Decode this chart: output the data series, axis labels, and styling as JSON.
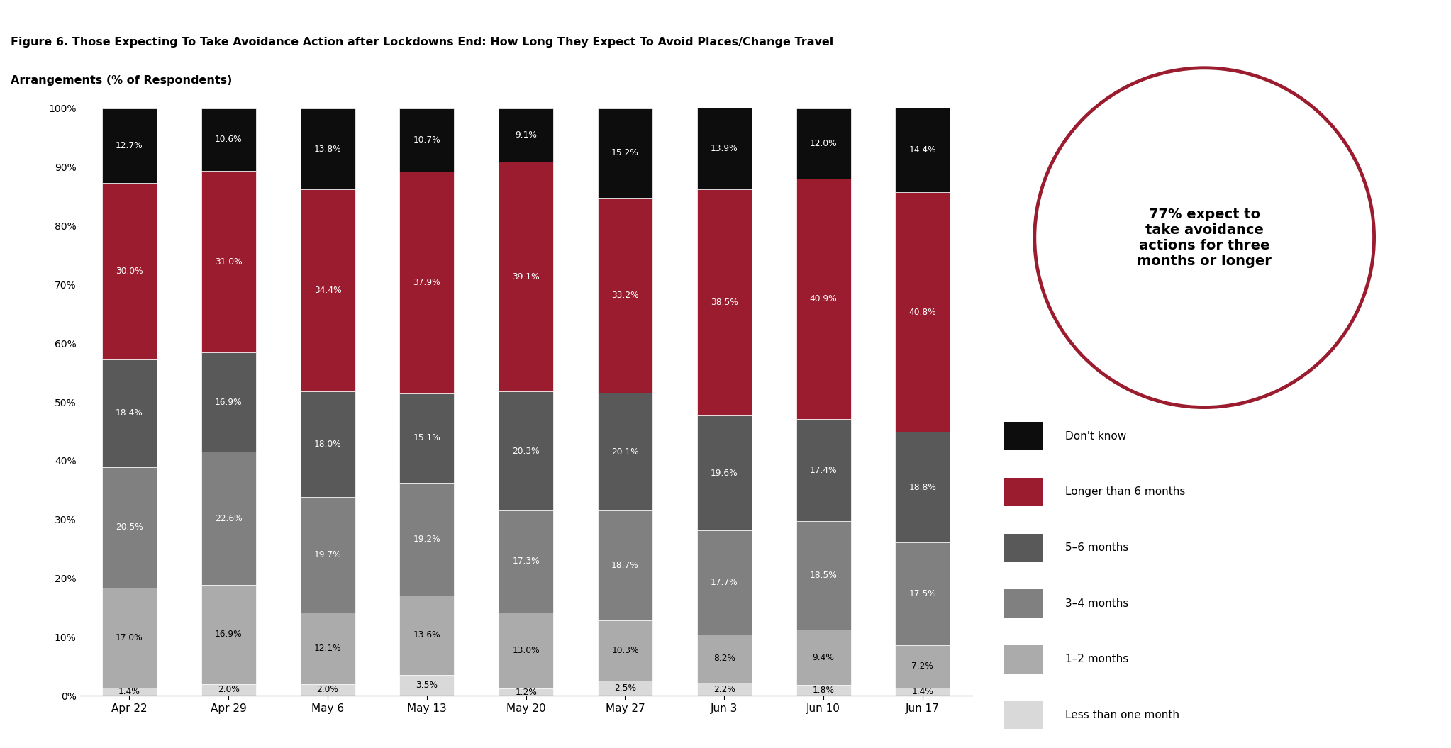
{
  "title_line1": "Figure 6. Those Expecting To Take Avoidance Action after Lockdowns End: How Long They Expect To Avoid Places/Change Travel",
  "title_line2": "Arrangements (% of Respondents)",
  "categories": [
    "Apr 22",
    "Apr 29",
    "May 6",
    "May 13",
    "May 20",
    "May 27",
    "Jun 3",
    "Jun 10",
    "Jun 17"
  ],
  "series": {
    "Less than one month": [
      1.4,
      2.0,
      2.0,
      3.5,
      1.2,
      2.5,
      2.2,
      1.8,
      1.4
    ],
    "1-2 months": [
      17.0,
      16.9,
      12.1,
      13.6,
      13.0,
      10.3,
      8.2,
      9.4,
      7.2
    ],
    "3-4 months": [
      20.5,
      22.6,
      19.7,
      19.2,
      17.3,
      18.7,
      17.7,
      18.5,
      17.5
    ],
    "5-6 months": [
      18.4,
      16.9,
      18.0,
      15.1,
      20.3,
      20.1,
      19.6,
      17.4,
      18.8
    ],
    "Longer than 6 months": [
      30.0,
      31.0,
      34.4,
      37.9,
      39.1,
      33.2,
      38.5,
      40.9,
      40.8
    ],
    "Don't know": [
      12.7,
      10.6,
      13.8,
      10.7,
      9.1,
      15.2,
      13.9,
      12.0,
      14.4
    ]
  },
  "colors": {
    "Less than one month": "#d9d9d9",
    "1-2 months": "#ababab",
    "3-4 months": "#808080",
    "5-6 months": "#595959",
    "Longer than 6 months": "#9b1c2e",
    "Don't know": "#0d0d0d"
  },
  "layer_order": [
    "Less than one month",
    "1-2 months",
    "3-4 months",
    "5-6 months",
    "Longer than 6 months",
    "Don't know"
  ],
  "legend_labels": [
    "Don't know",
    "Longer than 6 months",
    "5–6 months",
    "3–4 months",
    "1–2 months",
    "Less than one month"
  ],
  "legend_color_keys": [
    "Don't know",
    "Longer than 6 months",
    "5-6 months",
    "3-4 months",
    "1-2 months",
    "Less than one month"
  ],
  "circle_text": "77% expect to\ntake avoidance\nactions for three\nmonths or longer",
  "circle_color": "#9b1c2e",
  "background_color": "#ffffff",
  "header_bar_color": "#1a1a1a",
  "bar_width": 0.55,
  "ylim": [
    0,
    100
  ]
}
